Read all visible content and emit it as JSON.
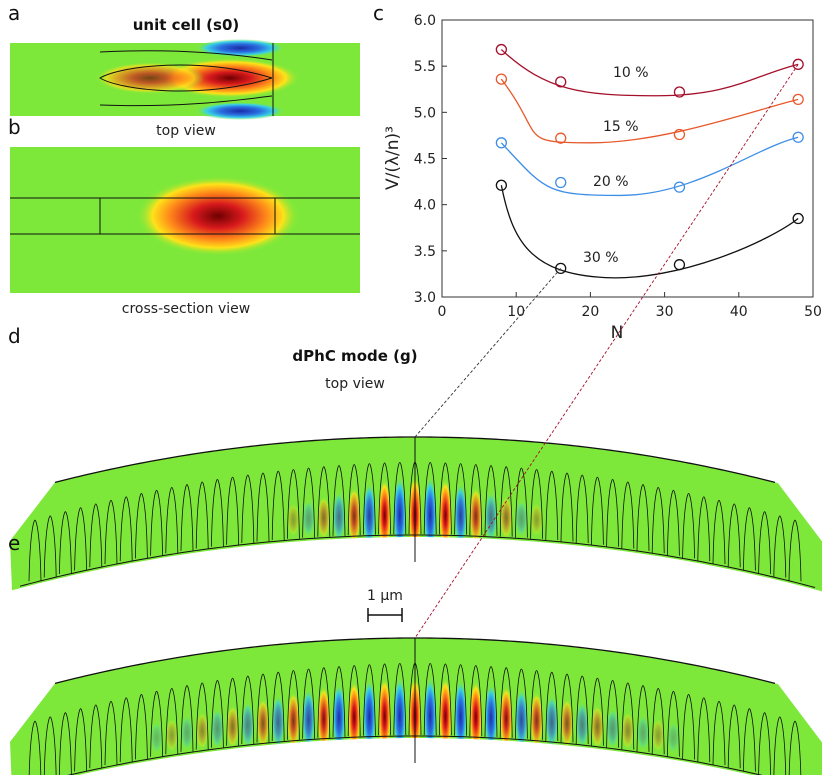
{
  "panels": {
    "a": {
      "letter": "a",
      "title": "unit cell (s0)",
      "caption": "top view"
    },
    "b": {
      "letter": "b",
      "caption": "cross-section view"
    },
    "c": {
      "letter": "c"
    },
    "d": {
      "letter": "d",
      "title": "dPhC mode (g)",
      "caption": "top view"
    },
    "e": {
      "letter": "e",
      "scalebar": "1 μm"
    }
  },
  "colors": {
    "background_field": "#7de83a",
    "hot": "#d7191c",
    "cold": "#2b3fc9",
    "series_10": "#a50f2a",
    "series_15": "#e8582a",
    "series_20": "#3c8ee6",
    "series_30": "#111111"
  },
  "chart_data": {
    "type": "line",
    "xlabel": "N",
    "ylabel": "V/(λ/n)³",
    "xlim": [
      0,
      50
    ],
    "ylim": [
      3.0,
      6.0
    ],
    "xticks": [
      "0",
      "10",
      "20",
      "30",
      "40",
      "50"
    ],
    "yticks": [
      "3.0",
      "3.5",
      "4.0",
      "4.5",
      "5.0",
      "5.5",
      "6.0"
    ],
    "grid": false,
    "series": [
      {
        "name": "10 %",
        "x": [
          8,
          16,
          32,
          48
        ],
        "y": [
          5.68,
          5.33,
          5.22,
          5.52
        ],
        "fit_min": [
          29,
          5.18
        ]
      },
      {
        "name": "15 %",
        "x": [
          8,
          16,
          32,
          48
        ],
        "y": [
          5.36,
          4.72,
          4.76,
          5.14
        ],
        "fit_min": [
          20,
          4.67
        ]
      },
      {
        "name": "20 %",
        "x": [
          8,
          16,
          32,
          48
        ],
        "y": [
          4.67,
          4.24,
          4.19,
          4.73
        ],
        "fit_min": [
          24,
          4.1
        ]
      },
      {
        "name": "30 %",
        "x": [
          8,
          16,
          32,
          48
        ],
        "y": [
          4.21,
          3.31,
          3.35,
          3.85
        ],
        "fit_min": [
          22,
          3.21
        ]
      }
    ]
  }
}
